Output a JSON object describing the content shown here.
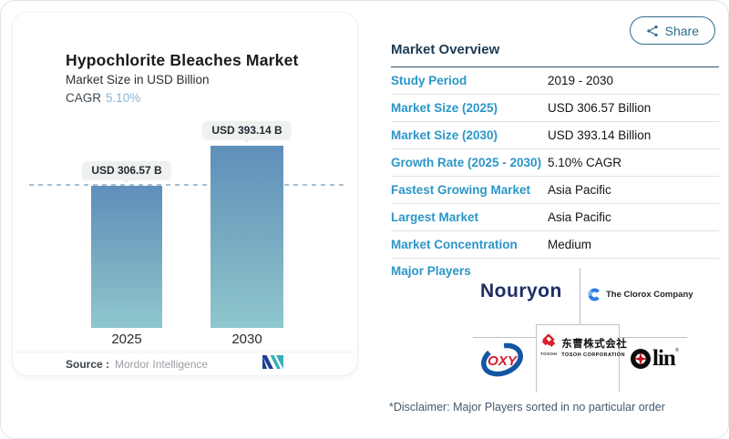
{
  "share": {
    "label": "Share"
  },
  "chart_card": {
    "title": "Hypochlorite Bleaches Market",
    "subtitle": "Market Size in USD Billion",
    "cagr_label": "CAGR",
    "cagr_value": "5.10%",
    "source_label": "Source :",
    "source_brand": "Mordor Intelligence"
  },
  "chart_data": {
    "type": "bar",
    "title": "Hypochlorite Bleaches Market",
    "ylabel": "Market Size in USD Billion",
    "categories": [
      "2025",
      "2030"
    ],
    "values": [
      306.57,
      393.14
    ],
    "bar_labels": [
      "USD 306.57 B",
      "USD 393.14 B"
    ],
    "reference_line": 306.57,
    "bar_gradient_top": "#5e8fba",
    "bar_gradient_bottom": "#8fc7cd",
    "grid": "off",
    "legend": "none"
  },
  "overview": {
    "title": "Market Overview",
    "rows": [
      {
        "label": "Study Period",
        "value": "2019 - 2030"
      },
      {
        "label": "Market Size (2025)",
        "value": "USD 306.57 Billion"
      },
      {
        "label": "Market Size (2030)",
        "value": "USD 393.14 Billion"
      },
      {
        "label": "Growth Rate (2025 - 2030)",
        "value": "5.10% CAGR"
      },
      {
        "label": "Fastest Growing Market",
        "value": "Asia Pacific"
      },
      {
        "label": "Largest Market",
        "value": "Asia Pacific"
      },
      {
        "label": "Market Concentration",
        "value": "Medium"
      }
    ],
    "major_players_label": "Major Players",
    "disclaimer": "*Disclaimer: Major Players sorted in no particular order"
  },
  "players": {
    "nouryon": "Nouryon",
    "clorox": "The Clorox Company",
    "oxy": "OXY",
    "tosoh_cn": "东曹株式会社",
    "tosoh_en": "TOSOH CORPORATION",
    "tosoh_small": "TOSOH",
    "olin": "O",
    "olin_rest": "lin",
    "olin_reg": "®"
  },
  "colors": {
    "accent_blue": "#2a96c8",
    "navy_heading": "#1d3b55",
    "share_teal": "#2d6e8c",
    "tosoh_red": "#d6222c",
    "nouryon_navy": "#1e2d66",
    "clorox_blue": "#2f7de0",
    "oxy_blue": "#1356a4",
    "oxy_red": "#d01e2f"
  }
}
